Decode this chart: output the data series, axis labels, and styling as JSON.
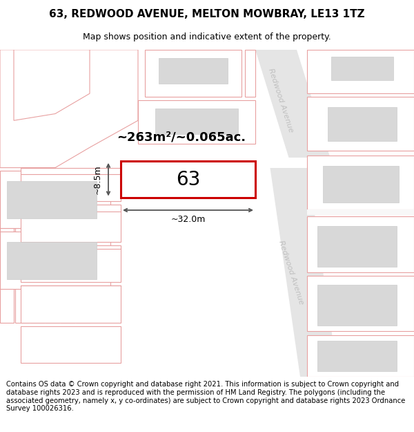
{
  "title": "63, REDWOOD AVENUE, MELTON MOWBRAY, LE13 1TZ",
  "subtitle": "Map shows position and indicative extent of the property.",
  "footer": "Contains OS data © Crown copyright and database right 2021. This information is subject to Crown copyright and database rights 2023 and is reproduced with the permission of HM Land Registry. The polygons (including the associated geometry, namely x, y co-ordinates) are subject to Crown copyright and database rights 2023 Ordnance Survey 100026316.",
  "area_text": "~263m²/~0.065ac.",
  "property_number": "63",
  "width_label": "~32.0m",
  "height_label": "~8.5m",
  "road_label": "Redwood Avenue",
  "plot_ec": "#e8a0a0",
  "building_fc": "#d8d8d8",
  "building_ec": "#cccccc",
  "highlight_ec": "#cc0000",
  "road_fc": "#e8e8e8",
  "map_bg": "#ffffff",
  "white": "#ffffff",
  "arrow_color": "#555555",
  "road_label_color": "#c0c0c0",
  "title_fontsize": 11,
  "subtitle_fontsize": 9,
  "footer_fontsize": 7.2,
  "area_fontsize": 13,
  "number_fontsize": 20,
  "dim_fontsize": 9
}
